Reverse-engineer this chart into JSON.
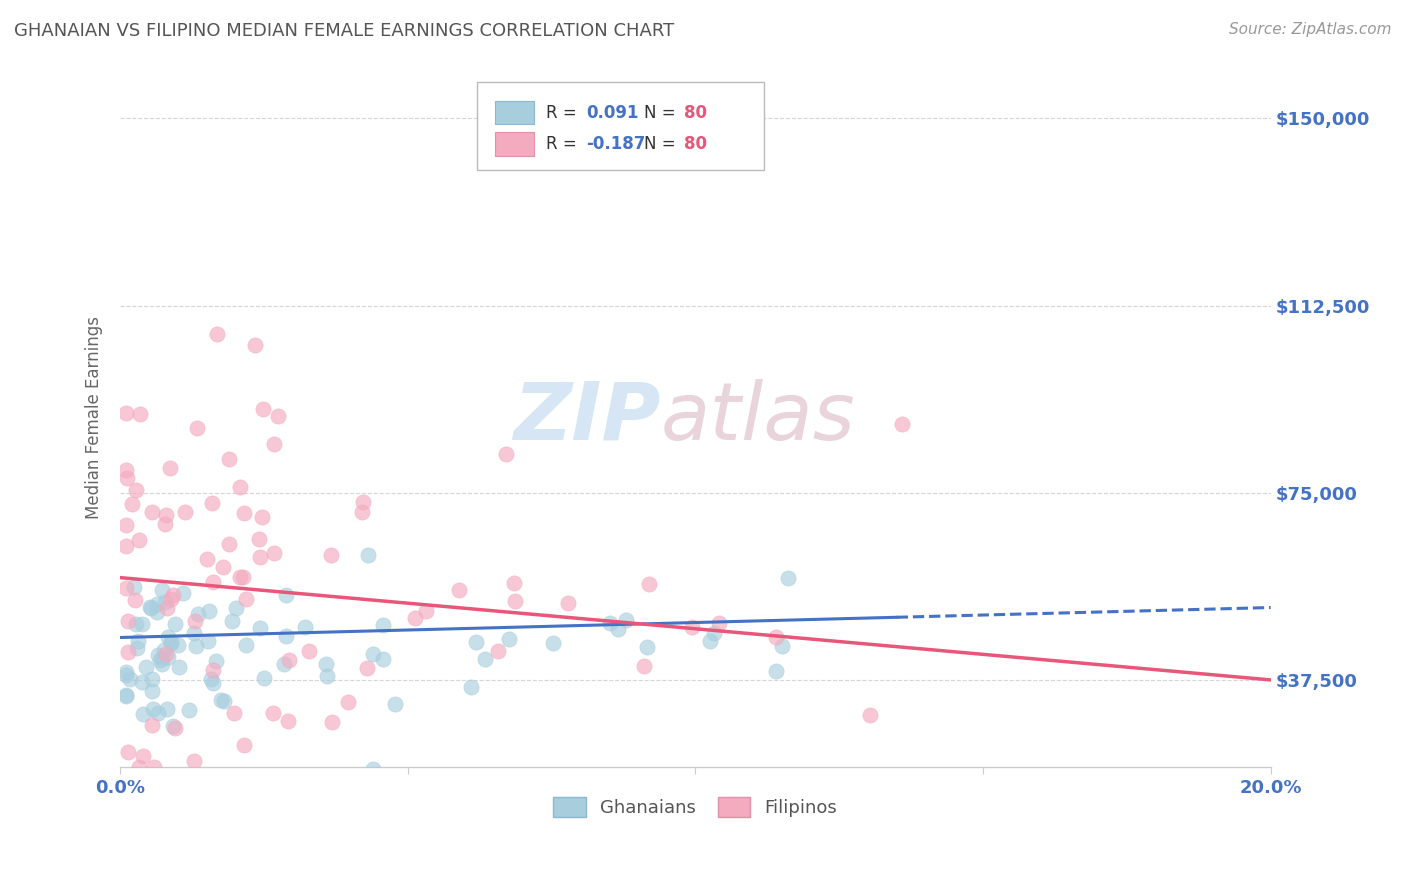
{
  "title": "GHANAIAN VS FILIPINO MEDIAN FEMALE EARNINGS CORRELATION CHART",
  "source_text": "Source: ZipAtlas.com",
  "ylabel": "Median Female Earnings",
  "xlim": [
    0.0,
    0.2
  ],
  "ylim": [
    20000,
    160000
  ],
  "yticks": [
    37500,
    75000,
    112500,
    150000
  ],
  "ytick_labels": [
    "$37,500",
    "$75,000",
    "$112,500",
    "$150,000"
  ],
  "xtick_labels": [
    "0.0%",
    "",
    "",
    "",
    "20.0%"
  ],
  "xticks": [
    0.0,
    0.05,
    0.1,
    0.15,
    0.2
  ],
  "ghanaian_color": "#A8CEDE",
  "filipino_color": "#F4AABF",
  "ghanaian_line_color": "#4472C4",
  "filipino_line_color": "#E8567A",
  "ghanaian_line_solid_end": 0.135,
  "R_ghanaian": "0.091",
  "R_filipino": "-0.187",
  "N_ghanaian": "80",
  "N_filipino": "80",
  "watermark_zip": "ZIP",
  "watermark_atlas": "atlas",
  "background_color": "#FFFFFF",
  "grid_color": "#CCCCCC",
  "legend_label_ghanaian": "Ghanaians",
  "legend_label_filipino": "Filipinos",
  "title_color": "#555555",
  "axis_label_color": "#666666",
  "tick_label_color": "#4472C4",
  "source_color": "#999999",
  "g_line_y0": 46000,
  "g_line_y1": 52000,
  "f_line_y0": 58000,
  "f_line_y1": 37500
}
